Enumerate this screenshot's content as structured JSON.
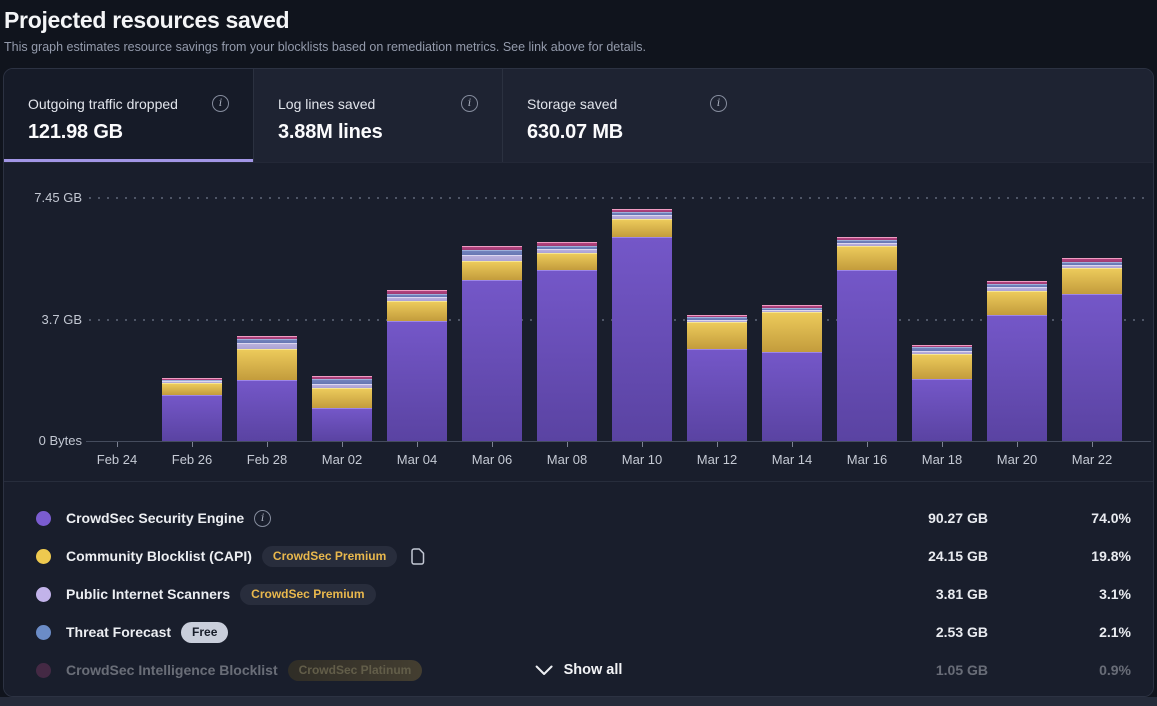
{
  "header": {
    "title": "Projected resources saved",
    "subtitle": "This graph estimates resource savings from your blocklists based on remediation metrics. See link above for details."
  },
  "tabs": [
    {
      "label": "Outgoing traffic dropped",
      "value": "121.98 GB",
      "active": true
    },
    {
      "label": "Log lines saved",
      "value": "3.88M lines",
      "active": false
    },
    {
      "label": "Storage saved",
      "value": "630.07 MB",
      "active": false
    }
  ],
  "icons": {
    "info_glyph": "i"
  },
  "chart_data": {
    "type": "bar",
    "stacked": true,
    "title": "Outgoing traffic dropped per day",
    "xlabel": "",
    "ylabel": "",
    "grid": "horizontal-dotted",
    "ylim": [
      0,
      8.1
    ],
    "unit": "GB",
    "y_ticks": [
      {
        "label": "0 Bytes",
        "value": 0
      },
      {
        "label": "3.7 GB",
        "value": 3.7
      },
      {
        "label": "7.45 GB",
        "value": 7.45
      }
    ],
    "x_ticks": [
      "Feb 24",
      "Feb 26",
      "Feb 28",
      "Mar 02",
      "Mar 04",
      "Mar 06",
      "Mar 08",
      "Mar 10",
      "Mar 12",
      "Mar 14",
      "Mar 16",
      "Mar 18",
      "Mar 20",
      "Mar 22"
    ],
    "categories": [
      "Feb 26",
      "Feb 28",
      "Mar 02",
      "Mar 04",
      "Mar 06",
      "Mar 08",
      "Mar 10",
      "Mar 12",
      "Mar 14",
      "Mar 16",
      "Mar 18",
      "Mar 20",
      "Mar 22"
    ],
    "series": [
      {
        "name": "CrowdSec Security Engine",
        "color": "#7457c8",
        "color2": "#5a43a2",
        "edge": "#9d86e8",
        "values": [
          1.42,
          1.87,
          1.01,
          3.69,
          4.95,
          5.24,
          6.24,
          2.83,
          2.73,
          5.23,
          1.89,
          3.86,
          4.5
        ]
      },
      {
        "name": "Community Blocklist (CAPI)",
        "color": "#ecca5b",
        "color2": "#c39c3c",
        "edge": "#f7e692",
        "values": [
          0.35,
          0.96,
          0.61,
          0.61,
          0.56,
          0.53,
          0.56,
          0.81,
          1.21,
          0.74,
          0.77,
          0.74,
          0.81
        ]
      },
      {
        "name": "Public Internet Scanners",
        "color": "#b9b0dd",
        "color2": "#aba1d4",
        "edge": "#ddd7f0",
        "values": [
          0.06,
          0.16,
          0.14,
          0.12,
          0.18,
          0.12,
          0.12,
          0.08,
          0.08,
          0.1,
          0.11,
          0.11,
          0.1
        ]
      },
      {
        "name": "Threat Forecast",
        "color": "#7282bd",
        "color2": "#6676b2",
        "edge": "#9db0da",
        "values": [
          0.05,
          0.14,
          0.14,
          0.1,
          0.16,
          0.1,
          0.1,
          0.07,
          0.07,
          0.09,
          0.1,
          0.1,
          0.09
        ]
      },
      {
        "name": "CrowdSec Intelligence Blocklist",
        "color": "#b2437f",
        "color2": "#a03a72",
        "edge": "#ef9cc2",
        "values": [
          0.04,
          0.1,
          0.1,
          0.1,
          0.12,
          0.1,
          0.09,
          0.07,
          0.09,
          0.08,
          0.08,
          0.09,
          0.1
        ]
      }
    ]
  },
  "legend": {
    "rows": [
      {
        "label": "CrowdSec Security Engine",
        "color": "#7a5cd0",
        "info": true,
        "badge": null,
        "copy_icon": false,
        "value": "90.27 GB",
        "percent": "74.0%",
        "faded": false
      },
      {
        "label": "Community Blocklist (CAPI)",
        "color": "#eec94f",
        "info": false,
        "badge": {
          "text": "CrowdSec Premium",
          "style": "premium"
        },
        "copy_icon": true,
        "value": "24.15 GB",
        "percent": "19.8%",
        "faded": false
      },
      {
        "label": "Public Internet Scanners",
        "color": "#c2b3ea",
        "info": false,
        "badge": {
          "text": "CrowdSec Premium",
          "style": "premium"
        },
        "copy_icon": false,
        "value": "3.81 GB",
        "percent": "3.1%",
        "faded": false
      },
      {
        "label": "Threat Forecast",
        "color": "#6b8cc7",
        "info": false,
        "badge": {
          "text": "Free",
          "style": "free"
        },
        "copy_icon": false,
        "value": "2.53 GB",
        "percent": "2.1%",
        "faded": false
      },
      {
        "label": "CrowdSec Intelligence Blocklist",
        "color": "#8b3b6d",
        "info": false,
        "badge": {
          "text": "CrowdSec Platinum",
          "style": "platinum"
        },
        "copy_icon": false,
        "value": "1.05 GB",
        "percent": "0.9%",
        "faded": true
      }
    ],
    "show_all_label": "Show all"
  }
}
